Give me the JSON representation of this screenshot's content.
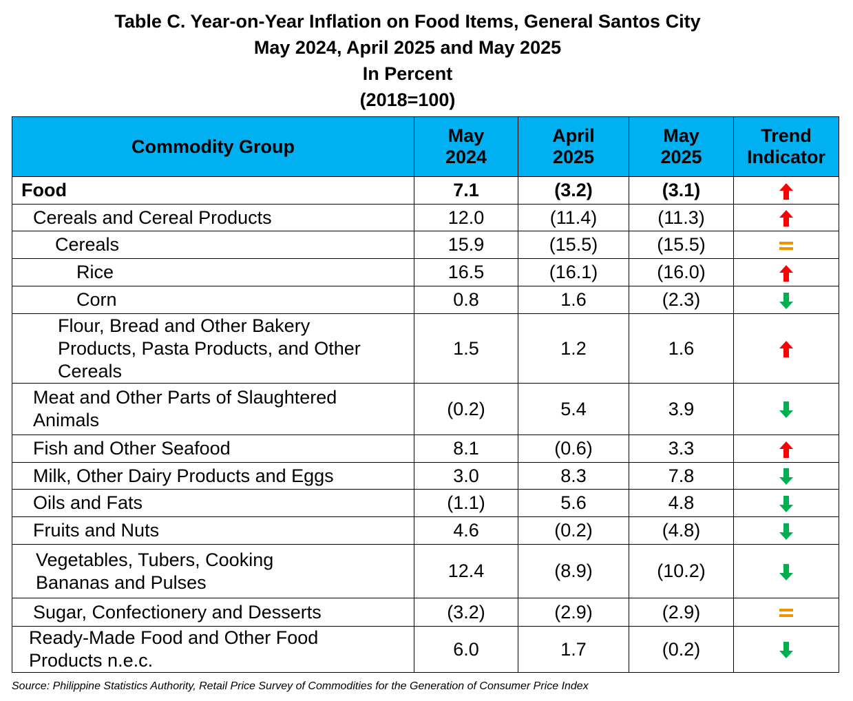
{
  "title": {
    "line1": "Table C. Year-on-Year Inflation on Food Items, General Santos City",
    "line2": "May 2024, April 2025 and May 2025",
    "line3": "In Percent",
    "line4": "(2018=100)"
  },
  "table": {
    "headers": {
      "commodity": "Commodity Group",
      "col1_line1": "May",
      "col1_line2": "2024",
      "col2_line1": "April",
      "col2_line2": "2025",
      "col3_line1": "May",
      "col3_line2": "2025",
      "col4_line1": "Trend",
      "col4_line2": "Indicator"
    },
    "rows": [
      {
        "name": "Food",
        "lines": [
          "Food"
        ],
        "may2024": "7.1",
        "apr2025": "(3.2)",
        "may2025": "(3.1)",
        "trend": "up"
      },
      {
        "name": "Cereals and Cereal Products",
        "lines": [
          "Cereals and Cereal Products"
        ],
        "may2024": "12.0",
        "apr2025": "(11.4)",
        "may2025": "(11.3)",
        "trend": "up"
      },
      {
        "name": "Cereals",
        "lines": [
          "Cereals"
        ],
        "may2024": "15.9",
        "apr2025": "(15.5)",
        "may2025": "(15.5)",
        "trend": "equal"
      },
      {
        "name": "Rice",
        "lines": [
          "Rice"
        ],
        "may2024": "16.5",
        "apr2025": "(16.1)",
        "may2025": "(16.0)",
        "trend": "up"
      },
      {
        "name": "Corn",
        "lines": [
          "Corn"
        ],
        "may2024": "0.8",
        "apr2025": "1.6",
        "may2025": "(2.3)",
        "trend": "down"
      },
      {
        "name": "Flour, Bread and Other Bakery Products, Pasta Products, and Other Cereals",
        "lines": [
          "Flour, Bread and Other Bakery",
          "Products, Pasta Products,  and Other",
          "Cereals"
        ],
        "may2024": "1.5",
        "apr2025": "1.2",
        "may2025": "1.6",
        "trend": "up"
      },
      {
        "name": "Meat and Other Parts of Slaughtered Animals",
        "lines": [
          "Meat and Other Parts of Slaughtered",
          "Animals"
        ],
        "may2024": "(0.2)",
        "apr2025": "5.4",
        "may2025": "3.9",
        "trend": "down"
      },
      {
        "name": "Fish and Other Seafood",
        "lines": [
          "Fish and Other Seafood"
        ],
        "may2024": "8.1",
        "apr2025": "(0.6)",
        "may2025": "3.3",
        "trend": "up"
      },
      {
        "name": "Milk, Other Dairy Products and Eggs",
        "lines": [
          "Milk, Other Dairy Products and Eggs"
        ],
        "may2024": "3.0",
        "apr2025": "8.3",
        "may2025": "7.8",
        "trend": "down"
      },
      {
        "name": "Oils and Fats",
        "lines": [
          "Oils and Fats"
        ],
        "may2024": "(1.1)",
        "apr2025": "5.6",
        "may2025": "4.8",
        "trend": "down"
      },
      {
        "name": "Fruits and Nuts",
        "lines": [
          "Fruits and Nuts"
        ],
        "may2024": "4.6",
        "apr2025": "(0.2)",
        "may2025": "(4.8)",
        "trend": "down"
      },
      {
        "name": "Vegetables, Tubers, Cooking Bananas and Pulses",
        "lines": [
          "Vegetables, Tubers, Cooking",
          "Bananas and  Pulses"
        ],
        "may2024": "12.4",
        "apr2025": "(8.9)",
        "may2025": "(10.2)",
        "trend": "down"
      },
      {
        "name": "Sugar, Confectionery and Desserts",
        "lines": [
          "Sugar, Confectionery and Desserts"
        ],
        "may2024": "(3.2)",
        "apr2025": "(2.9)",
        "may2025": "(2.9)",
        "trend": "equal"
      },
      {
        "name": "Ready-Made Food and Other Food Products n.e.c.",
        "lines": [
          "Ready-Made Food and Other Food",
          "Products n.e.c."
        ],
        "may2024": "6.0",
        "apr2025": "1.7",
        "may2025": "(0.2)",
        "trend": "down"
      }
    ]
  },
  "colors": {
    "header_bg": "#00b0f0",
    "trend_up": "#ff0000",
    "trend_down": "#00b050",
    "trend_equal": "#f39200"
  },
  "source": "Source: Philippine Statistics Authority, Retail Price Survey of Commodities for the Generation of Consumer Price Index"
}
